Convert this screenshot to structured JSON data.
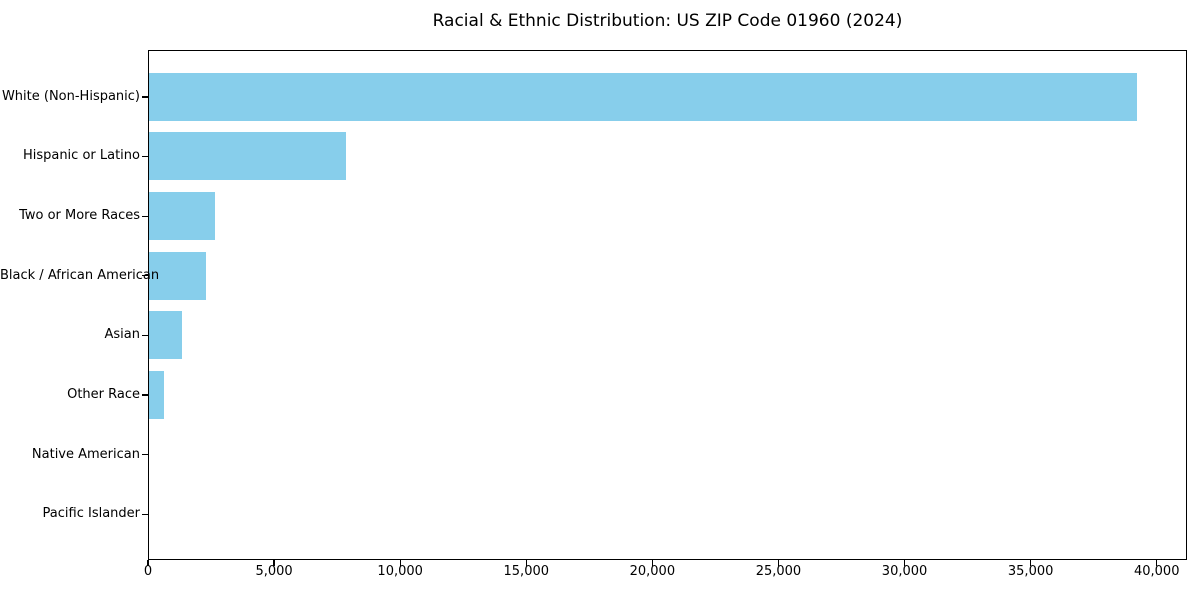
{
  "chart_data": {
    "type": "bar",
    "orientation": "horizontal",
    "title": "Racial & Ethnic Distribution: US ZIP Code 01960 (2024)",
    "categories": [
      "White (Non-Hispanic)",
      "Hispanic or Latino",
      "Two or More Races",
      "Black / African American",
      "Asian",
      "Other Race",
      "Native American",
      "Pacific Islander"
    ],
    "values": [
      39200,
      7860,
      2660,
      2300,
      1350,
      640,
      40,
      15
    ],
    "xlabel": "",
    "ylabel": "",
    "xlim": [
      0,
      41200
    ],
    "xticks": [
      0,
      5000,
      10000,
      15000,
      20000,
      25000,
      30000,
      35000,
      40000
    ],
    "xtick_labels": [
      "0",
      "5,000",
      "10,000",
      "15,000",
      "20,000",
      "25,000",
      "30,000",
      "35,000",
      "40,000"
    ],
    "bar_color": "#87CEEB",
    "axis_color": "#000000",
    "text_color": "#000000",
    "grid": false,
    "legend_position": "none"
  }
}
